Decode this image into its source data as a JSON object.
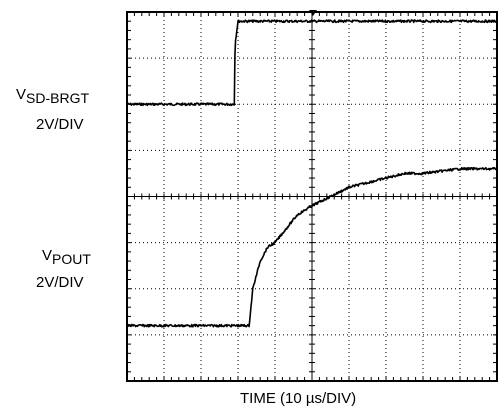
{
  "chart_data": {
    "type": "line",
    "title": "",
    "xlabel": "TIME (10 µs/DIV)",
    "ylabel": "",
    "grid": true,
    "divisions": {
      "x": 10,
      "y": 8
    },
    "series": [
      {
        "name_main": "V",
        "name_sub": "SD-BRGT",
        "scale": "2V/DIV",
        "x_div": [
          0,
          2.9,
          2.92,
          3.0,
          10
        ],
        "y_div": [
          6.0,
          6.0,
          7.3,
          7.8,
          7.8
        ]
      },
      {
        "name_main": "V",
        "name_sub": "POUT",
        "scale": "2V/DIV",
        "x_div": [
          0,
          3.3,
          3.4,
          3.6,
          3.8,
          4.0,
          4.2,
          4.4,
          4.6,
          5.0,
          5.5,
          6.0,
          6.5,
          7.0,
          7.5,
          8.0,
          9.0,
          10.0
        ],
        "y_div": [
          1.2,
          1.2,
          2.0,
          2.6,
          2.9,
          3.0,
          3.2,
          3.4,
          3.6,
          3.8,
          4.0,
          4.2,
          4.3,
          4.4,
          4.5,
          4.5,
          4.6,
          4.6
        ]
      }
    ]
  }
}
